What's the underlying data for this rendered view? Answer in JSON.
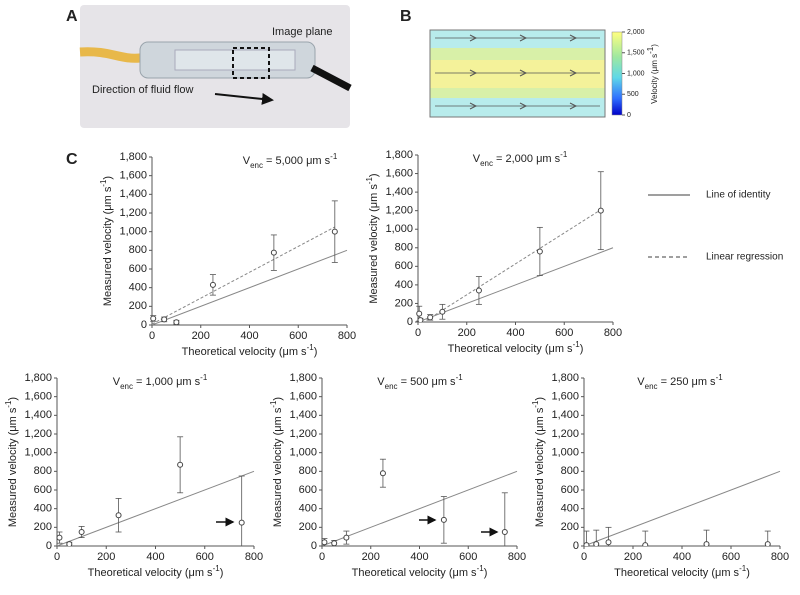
{
  "panel_labels": [
    "A",
    "B",
    "C"
  ],
  "panel_a": {
    "image_plane": "Image plane",
    "flow_direction": "Direction of fluid flow"
  },
  "panel_b": {
    "colorbar_label": {
      "text": "Velocity (μm s",
      "sup": "-1",
      "end": ")"
    },
    "colorbar_lim": [
      0,
      2000
    ],
    "colorbar_ticks": [
      {
        "value": 2000,
        "label": "2,000"
      },
      {
        "value": 1500,
        "label": "1,500"
      },
      {
        "value": 1000,
        "label": "1,000"
      },
      500,
      0
    ]
  },
  "legend": [
    {
      "name": "Line of identity",
      "dash": false
    },
    {
      "name": "Linear regression",
      "dash": true
    }
  ],
  "chart_data": [
    {
      "type": "scatter",
      "title": {
        "main": "V",
        "sub": "enc",
        "rest": " = 5,000 μm s",
        "sup": "-1"
      },
      "x_label": {
        "text": "Theoretical velocity (μm s",
        "sup": "-1",
        "end": ")"
      },
      "y_label": {
        "text": "Measured velocity (μm s",
        "sup": "-1",
        "end": ")"
      },
      "x": [
        5,
        50,
        100,
        250,
        500,
        750
      ],
      "values": [
        70,
        60,
        30,
        430,
        775,
        1000
      ],
      "errors": [
        30,
        25,
        20,
        110,
        190,
        330
      ],
      "lines": [
        {
          "x": [
            0,
            800
          ],
          "y": [
            0,
            800
          ],
          "dash": false
        },
        {
          "x": [
            0,
            750
          ],
          "y": [
            10,
            1050
          ],
          "dash": true
        }
      ],
      "xlim": [
        0,
        800
      ],
      "ylim": [
        0,
        1800
      ],
      "xticks": [
        0,
        200,
        400,
        600,
        800
      ],
      "yticks": [
        0,
        200,
        400,
        600,
        800,
        {
          "value": 1000,
          "label": "1,000"
        },
        {
          "value": 1200,
          "label": "1,200"
        },
        {
          "value": 1400,
          "label": "1,400"
        },
        {
          "value": 1600,
          "label": "1,600"
        },
        {
          "value": 1800,
          "label": "1,800"
        }
      ]
    },
    {
      "type": "scatter",
      "title": {
        "main": "V",
        "sub": "enc",
        "rest": " = 2,000 μm s",
        "sup": "-1"
      },
      "x_label": {
        "text": "Theoretical velocity (μm s",
        "sup": "-1",
        "end": ")"
      },
      "y_label": {
        "text": "Measured velocity (μm s",
        "sup": "-1",
        "end": ")"
      },
      "x": [
        5,
        10,
        50,
        100,
        250,
        500,
        750
      ],
      "values": [
        90,
        20,
        50,
        110,
        340,
        760,
        1200
      ],
      "errors": [
        80,
        20,
        30,
        80,
        150,
        260,
        420
      ],
      "lines": [
        {
          "x": [
            0,
            800
          ],
          "y": [
            0,
            800
          ],
          "dash": false
        },
        {
          "x": [
            0,
            750
          ],
          "y": [
            -40,
            1210
          ],
          "dash": true
        }
      ],
      "xlim": [
        0,
        800
      ],
      "ylim": [
        0,
        1800
      ],
      "xticks": [
        0,
        200,
        400,
        600,
        800
      ],
      "yticks": [
        0,
        200,
        400,
        600,
        800,
        {
          "value": 1000,
          "label": "1,000"
        },
        {
          "value": 1200,
          "label": "1,200"
        },
        {
          "value": 1400,
          "label": "1,400"
        },
        {
          "value": 1600,
          "label": "1,600"
        },
        {
          "value": 1800,
          "label": "1,800"
        }
      ]
    },
    {
      "type": "scatter",
      "title": {
        "main": "V",
        "sub": "enc",
        "rest": " = 1,000 μm s",
        "sup": "-1"
      },
      "x_label": {
        "text": "Theoretical velocity (μm s",
        "sup": "-1",
        "end": ")"
      },
      "y_label": {
        "text": "Measured velocity (μm s",
        "sup": "-1",
        "end": ")"
      },
      "x": [
        10,
        50,
        100,
        250,
        500,
        750
      ],
      "values": [
        90,
        20,
        150,
        330,
        870,
        250
      ],
      "errors": [
        60,
        20,
        60,
        180,
        300,
        500
      ],
      "lines": [
        {
          "x": [
            0,
            800
          ],
          "y": [
            0,
            800
          ],
          "dash": false
        }
      ],
      "xlim": [
        0,
        800
      ],
      "ylim": [
        0,
        1800
      ],
      "xticks": [
        0,
        200,
        400,
        600,
        800
      ],
      "yticks": [
        0,
        200,
        400,
        600,
        800,
        {
          "value": 1000,
          "label": "1,000"
        },
        {
          "value": 1200,
          "label": "1,200"
        },
        {
          "value": 1400,
          "label": "1,400"
        },
        {
          "value": 1600,
          "label": "1,600"
        },
        {
          "value": 1800,
          "label": "1,800"
        }
      ]
    },
    {
      "type": "scatter",
      "title": {
        "main": "V",
        "sub": "enc",
        "rest": " = 500 μm s",
        "sup": "-1"
      },
      "x_label": {
        "text": "Theoretical velocity (μm s",
        "sup": "-1",
        "end": ")"
      },
      "y_label": {
        "text": "Measured velocity (μm s",
        "sup": "-1",
        "end": ")"
      },
      "x": [
        10,
        50,
        100,
        250,
        500,
        750
      ],
      "values": [
        40,
        30,
        90,
        780,
        280,
        150
      ],
      "errors": [
        40,
        30,
        70,
        150,
        250,
        420
      ],
      "lines": [
        {
          "x": [
            0,
            800
          ],
          "y": [
            0,
            800
          ],
          "dash": false
        }
      ],
      "xlim": [
        0,
        800
      ],
      "ylim": [
        0,
        1800
      ],
      "xticks": [
        0,
        200,
        400,
        600,
        800
      ],
      "yticks": [
        0,
        200,
        400,
        600,
        800,
        {
          "value": 1000,
          "label": "1,000"
        },
        {
          "value": 1200,
          "label": "1,200"
        },
        {
          "value": 1400,
          "label": "1,400"
        },
        {
          "value": 1600,
          "label": "1,600"
        },
        {
          "value": 1800,
          "label": "1,800"
        }
      ]
    },
    {
      "type": "scatter",
      "title": {
        "main": "V",
        "sub": "enc",
        "rest": " = 250 μm s",
        "sup": "-1"
      },
      "x_label": {
        "text": "Theoretical velocity (μm s",
        "sup": "-1",
        "end": ")"
      },
      "y_label": {
        "text": "Measured velocity (μm s",
        "sup": "-1",
        "end": ")"
      },
      "x": [
        10,
        50,
        100,
        250,
        500,
        750
      ],
      "values": [
        10,
        20,
        40,
        10,
        20,
        20
      ],
      "errors": [
        150,
        150,
        160,
        150,
        150,
        140
      ],
      "lines": [
        {
          "x": [
            0,
            800
          ],
          "y": [
            0,
            800
          ],
          "dash": false
        }
      ],
      "xlim": [
        0,
        800
      ],
      "ylim": [
        0,
        1800
      ],
      "xticks": [
        0,
        200,
        400,
        600,
        800
      ],
      "yticks": [
        0,
        200,
        400,
        600,
        800,
        {
          "value": 1000,
          "label": "1,000"
        },
        {
          "value": 1200,
          "label": "1,200"
        },
        {
          "value": 1400,
          "label": "1,400"
        },
        {
          "value": 1600,
          "label": "1,600"
        },
        {
          "value": 1800,
          "label": "1,800"
        }
      ]
    }
  ]
}
